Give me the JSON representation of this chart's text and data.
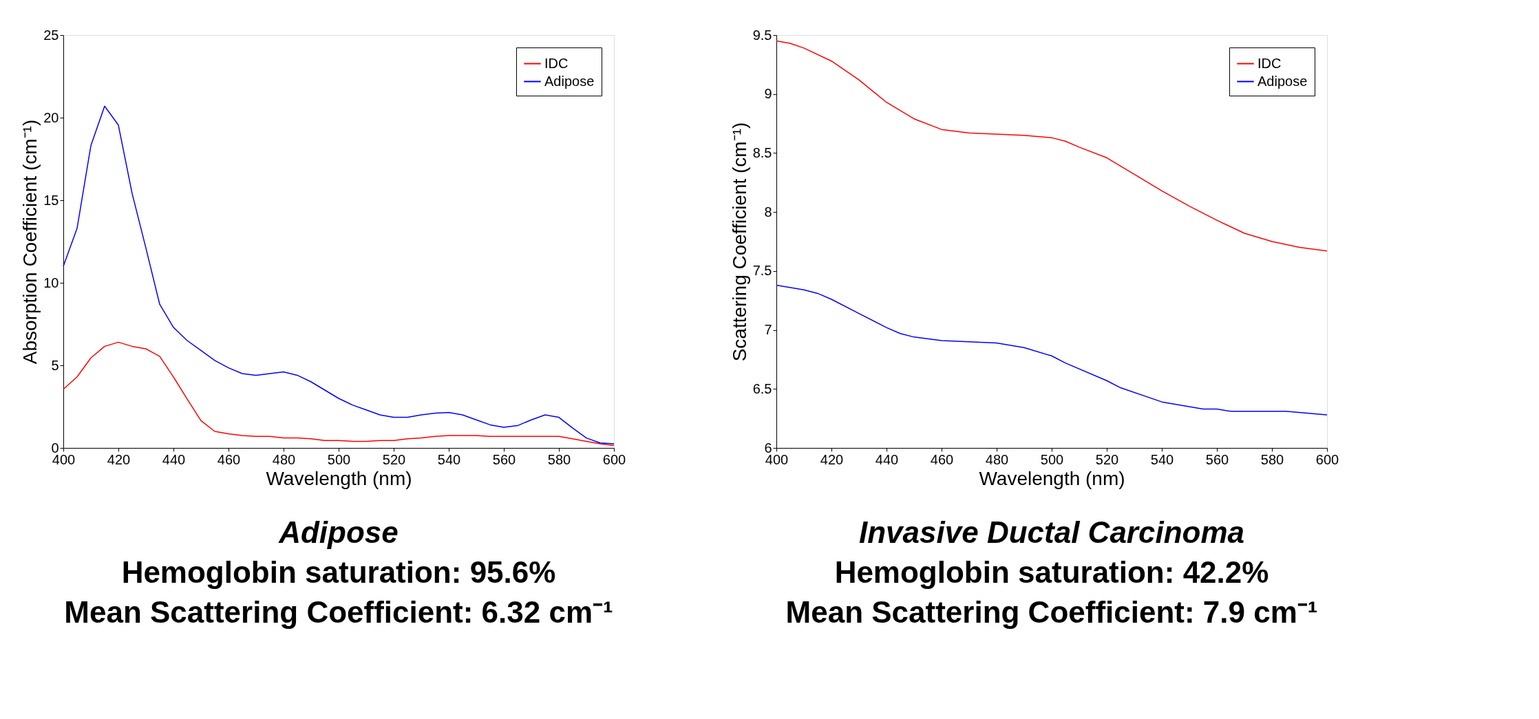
{
  "chart_data": [
    {
      "type": "line",
      "xlabel": "Wavelength (nm)",
      "ylabel": "Absorption Coefficient (cm⁻¹)",
      "xlim": [
        400,
        600
      ],
      "xticks": [
        400,
        420,
        440,
        460,
        480,
        500,
        520,
        540,
        560,
        580,
        600
      ],
      "ylim": [
        0,
        25
      ],
      "yticks": [
        0,
        5,
        10,
        15,
        20,
        25
      ],
      "grid": false,
      "legend": "top right",
      "marker": "none",
      "line_style": "solid",
      "x": [
        400,
        405,
        410,
        415,
        420,
        425,
        430,
        435,
        440,
        445,
        450,
        455,
        460,
        465,
        470,
        475,
        480,
        485,
        490,
        495,
        500,
        505,
        510,
        515,
        520,
        525,
        530,
        535,
        540,
        545,
        550,
        555,
        560,
        565,
        570,
        575,
        580,
        585,
        590,
        595,
        600
      ],
      "series": [
        {
          "name": "IDC",
          "color": "#ff0000",
          "values": [
            3.55,
            4.3,
            5.45,
            6.15,
            6.4,
            6.15,
            6.0,
            5.55,
            4.3,
            2.95,
            1.65,
            1.0,
            0.85,
            0.75,
            0.7,
            0.7,
            0.6,
            0.6,
            0.55,
            0.45,
            0.45,
            0.4,
            0.4,
            0.45,
            0.45,
            0.55,
            0.6,
            0.7,
            0.75,
            0.75,
            0.75,
            0.7,
            0.7,
            0.7,
            0.7,
            0.7,
            0.7,
            0.55,
            0.4,
            0.25,
            0.15
          ]
        },
        {
          "name": "Adipose",
          "color": "#0000ff",
          "values": [
            11.0,
            13.3,
            18.3,
            20.7,
            19.55,
            15.4,
            12.1,
            8.7,
            7.3,
            6.5,
            5.9,
            5.3,
            4.85,
            4.5,
            4.4,
            4.5,
            4.6,
            4.4,
            4.0,
            3.5,
            3.0,
            2.6,
            2.3,
            2.0,
            1.85,
            1.85,
            2.0,
            2.1,
            2.15,
            2.0,
            1.7,
            1.4,
            1.25,
            1.35,
            1.7,
            2.0,
            1.85,
            1.2,
            0.6,
            0.3,
            0.25
          ]
        }
      ],
      "annotations": [
        "Adipose",
        "Hemoglobin saturation: 95.6%",
        "Mean Scattering Coefficient: 6.32 cm⁻¹"
      ]
    },
    {
      "type": "line",
      "xlabel": "Wavelength (nm)",
      "ylabel": "Scattering Coefficient (cm⁻¹)",
      "xlim": [
        400,
        600
      ],
      "xticks": [
        400,
        420,
        440,
        460,
        480,
        500,
        520,
        540,
        560,
        580,
        600
      ],
      "ylim": [
        6,
        9.5
      ],
      "yticks": [
        6,
        6.5,
        7,
        7.5,
        8,
        8.5,
        9,
        9.5
      ],
      "grid": false,
      "legend": "top right",
      "marker": "none",
      "line_style": "solid",
      "series": [
        {
          "name": "IDC",
          "color": "#ff0000",
          "x": [
            400,
            405,
            410,
            420,
            430,
            440,
            450,
            460,
            470,
            480,
            490,
            500,
            505,
            510,
            520,
            530,
            540,
            550,
            560,
            570,
            580,
            590,
            600
          ],
          "values": [
            9.45,
            9.43,
            9.39,
            9.28,
            9.12,
            8.93,
            8.79,
            8.7,
            8.67,
            8.66,
            8.65,
            8.63,
            8.6,
            8.55,
            8.46,
            8.32,
            8.18,
            8.05,
            7.93,
            7.82,
            7.75,
            7.7,
            7.67
          ]
        },
        {
          "name": "Adipose",
          "color": "#0000ff",
          "x": [
            400,
            410,
            415,
            420,
            430,
            440,
            445,
            450,
            460,
            470,
            480,
            490,
            500,
            505,
            520,
            525,
            540,
            555,
            560,
            565,
            585,
            600
          ],
          "values": [
            7.38,
            7.34,
            7.31,
            7.26,
            7.14,
            7.02,
            6.97,
            6.94,
            6.91,
            6.9,
            6.89,
            6.85,
            6.78,
            6.72,
            6.57,
            6.51,
            6.39,
            6.33,
            6.33,
            6.31,
            6.31,
            6.28
          ]
        }
      ],
      "annotations": [
        "Invasive Ductal Carcinoma",
        "Hemoglobin saturation: 42.2%",
        "Mean Scattering Coefficient: 7.9 cm⁻¹"
      ]
    }
  ]
}
